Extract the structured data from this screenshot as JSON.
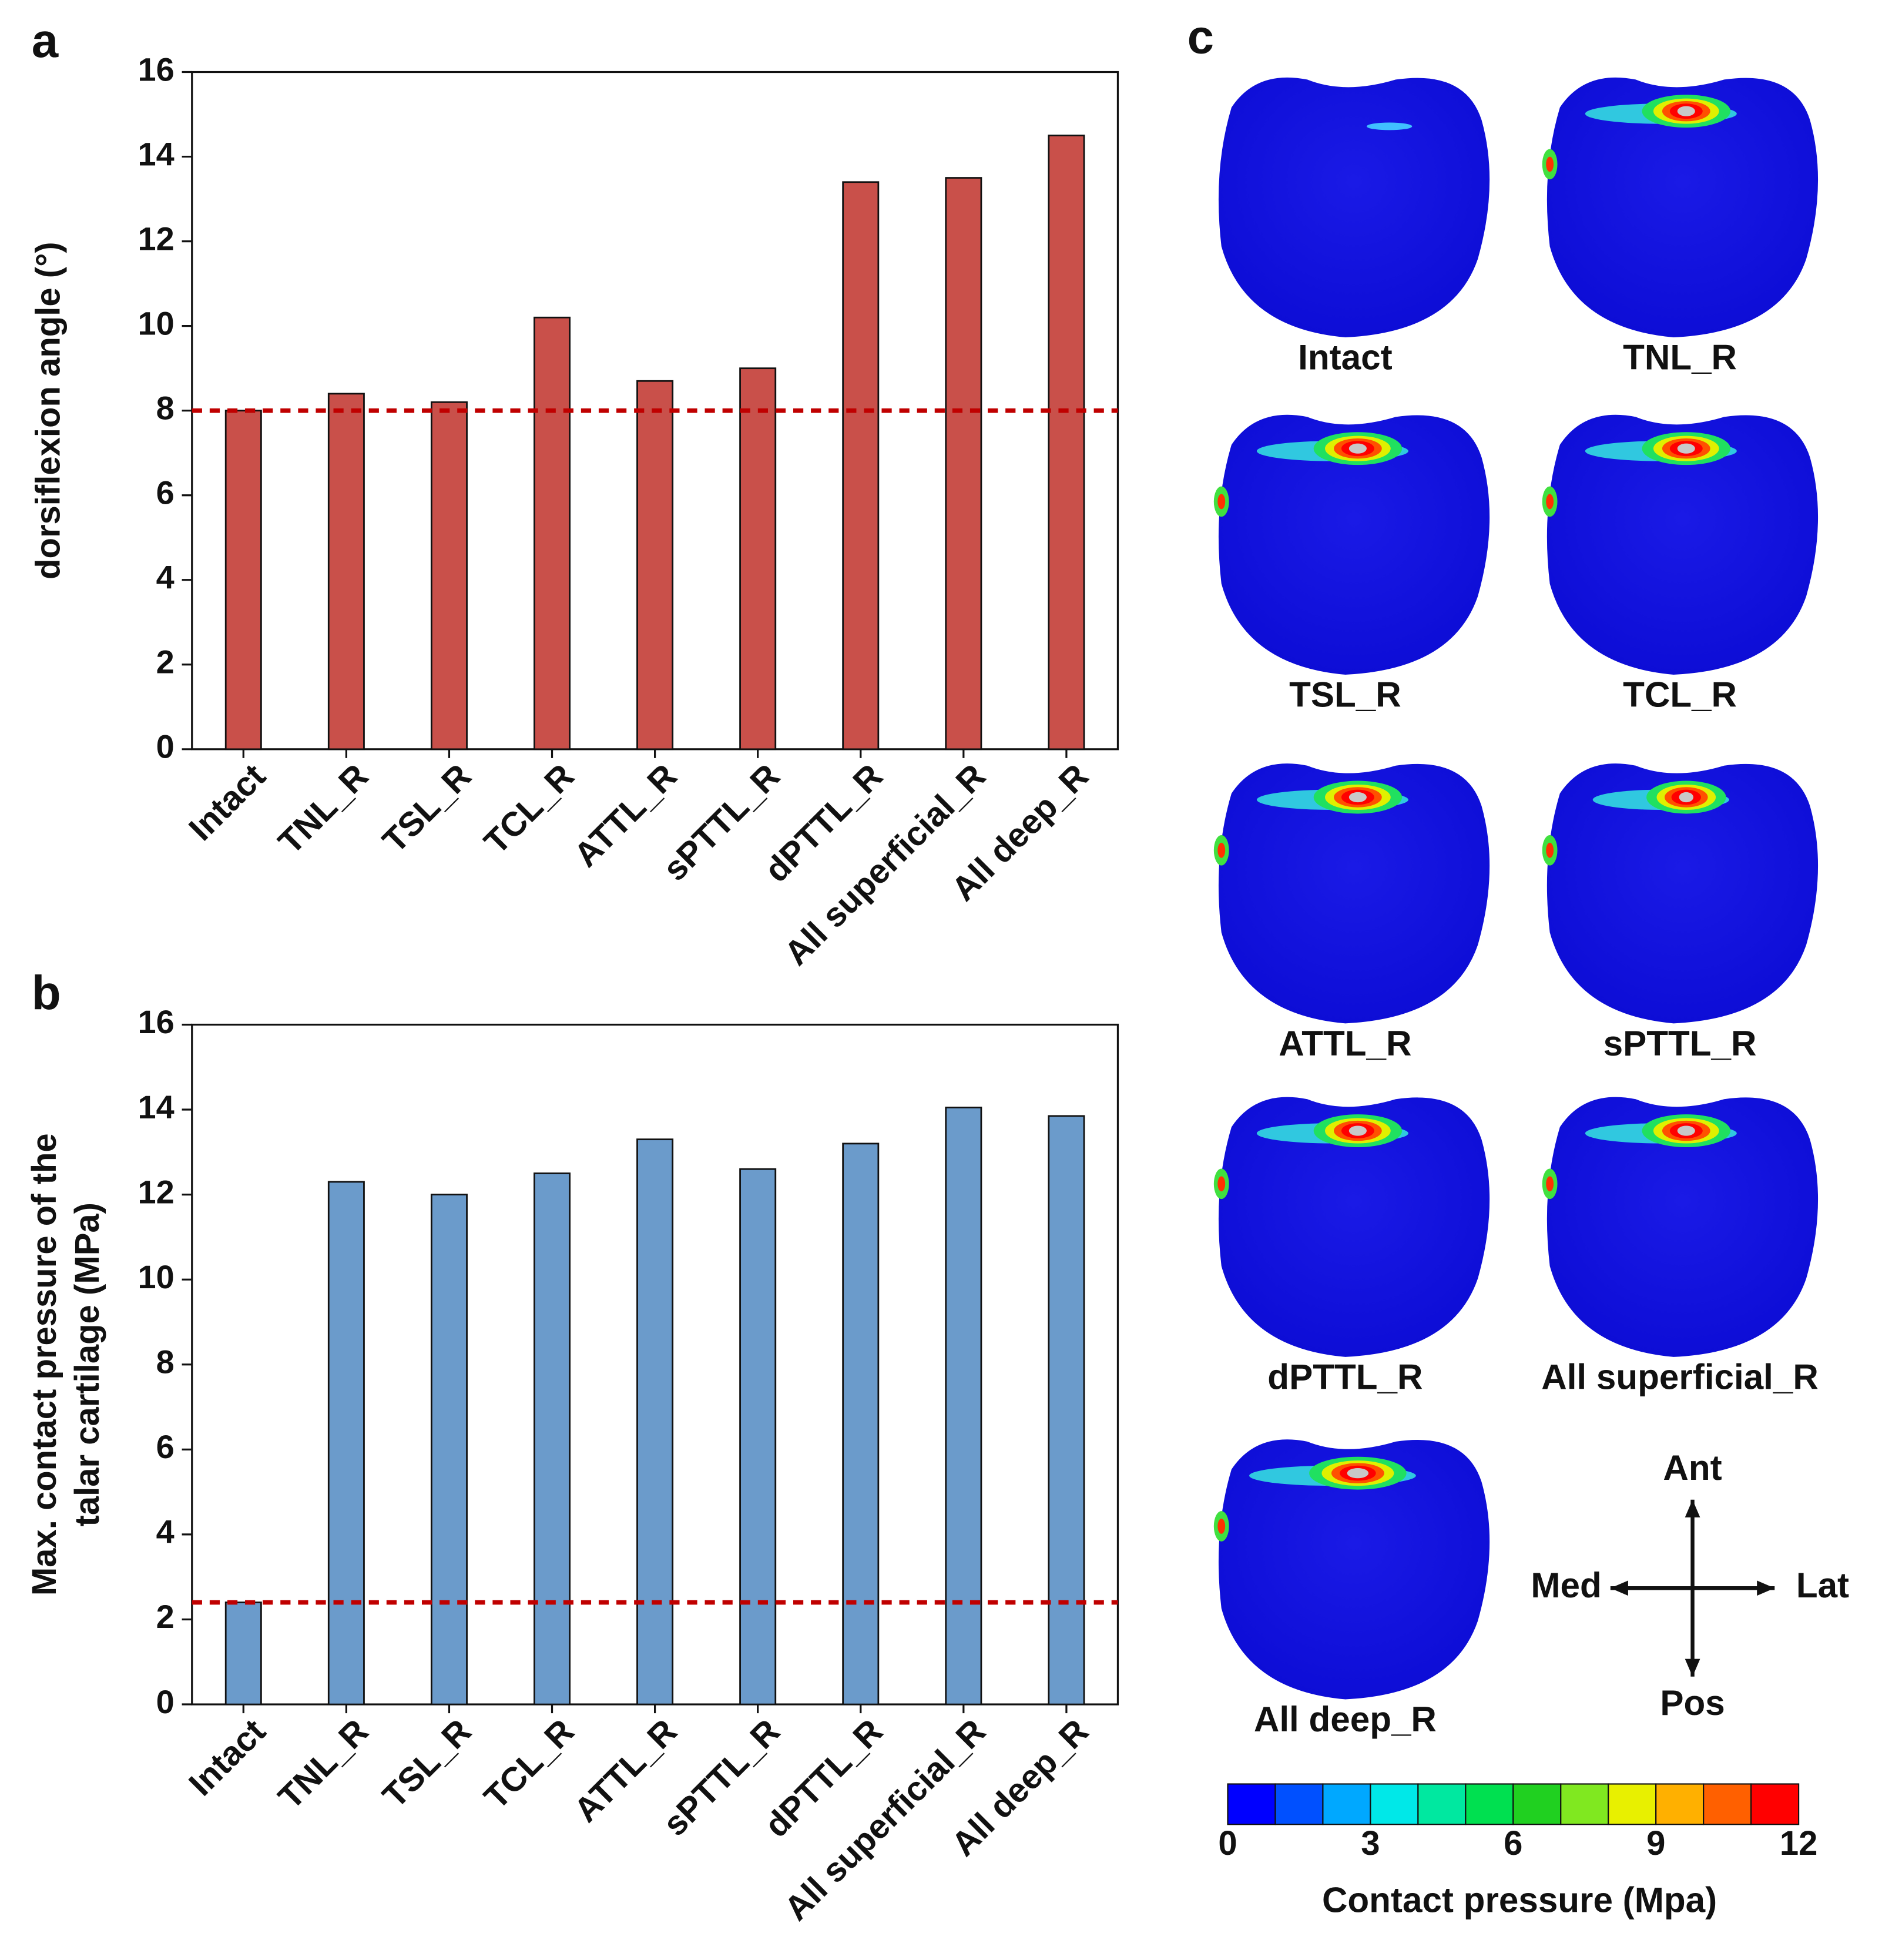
{
  "chart_data": [
    {
      "type": "bar",
      "panel_label": "a",
      "ylabel": [
        "dorsiflexion angle (°)"
      ],
      "categories": [
        "Intact",
        "TNL_R",
        "TSL_R",
        "TCL_R",
        "ATTL_R",
        "sPTTL_R",
        "dPTTL_R",
        "All superficial_R",
        "All deep_R"
      ],
      "values": [
        8.0,
        8.4,
        8.2,
        10.2,
        8.7,
        9.0,
        13.4,
        13.5,
        14.5
      ],
      "color": "#c9504a",
      "reference_line": 8.0,
      "reference_color": "#c00000",
      "ylim": [
        0,
        16
      ],
      "yticks": [
        0,
        2,
        4,
        6,
        8,
        10,
        12,
        14,
        16
      ]
    },
    {
      "type": "bar",
      "panel_label": "b",
      "ylabel": [
        "Max. contact pressure of the",
        "talar cartilage (MPa)"
      ],
      "categories": [
        "Intact",
        "TNL_R",
        "TSL_R",
        "TCL_R",
        "ATTL_R",
        "sPTTL_R",
        "dPTTL_R",
        "All superficial_R",
        "All deep_R"
      ],
      "values": [
        2.4,
        12.3,
        12.0,
        12.5,
        13.3,
        12.6,
        13.2,
        14.05,
        13.85
      ],
      "color": "#6b9bcb",
      "reference_line": 2.4,
      "reference_color": "#c00000",
      "ylim": [
        0,
        16
      ],
      "yticks": [
        0,
        2,
        4,
        6,
        8,
        10,
        12,
        14,
        16
      ]
    }
  ],
  "panel_c": {
    "panel_label": "c",
    "images": [
      "Intact",
      "TNL_R",
      "TSL_R",
      "TCL_R",
      "ATTL_R",
      "sPTTL_R",
      "dPTTL_R",
      "All superficial_R",
      "All deep_R"
    ],
    "directions": {
      "up": "Ant",
      "down": "Pos",
      "left": "Med",
      "right": "Lat"
    },
    "colorbar": {
      "label": "Contact pressure (Mpa)",
      "lim": [
        0,
        12
      ],
      "ticks": [
        0,
        3,
        6,
        9,
        12
      ],
      "colors": [
        "#0000ff",
        "#0050ff",
        "#00a8ff",
        "#00e8e8",
        "#00e8a0",
        "#00e050",
        "#20d020",
        "#80e820",
        "#e8f000",
        "#ffb000",
        "#ff6000",
        "#ff0000"
      ]
    }
  }
}
